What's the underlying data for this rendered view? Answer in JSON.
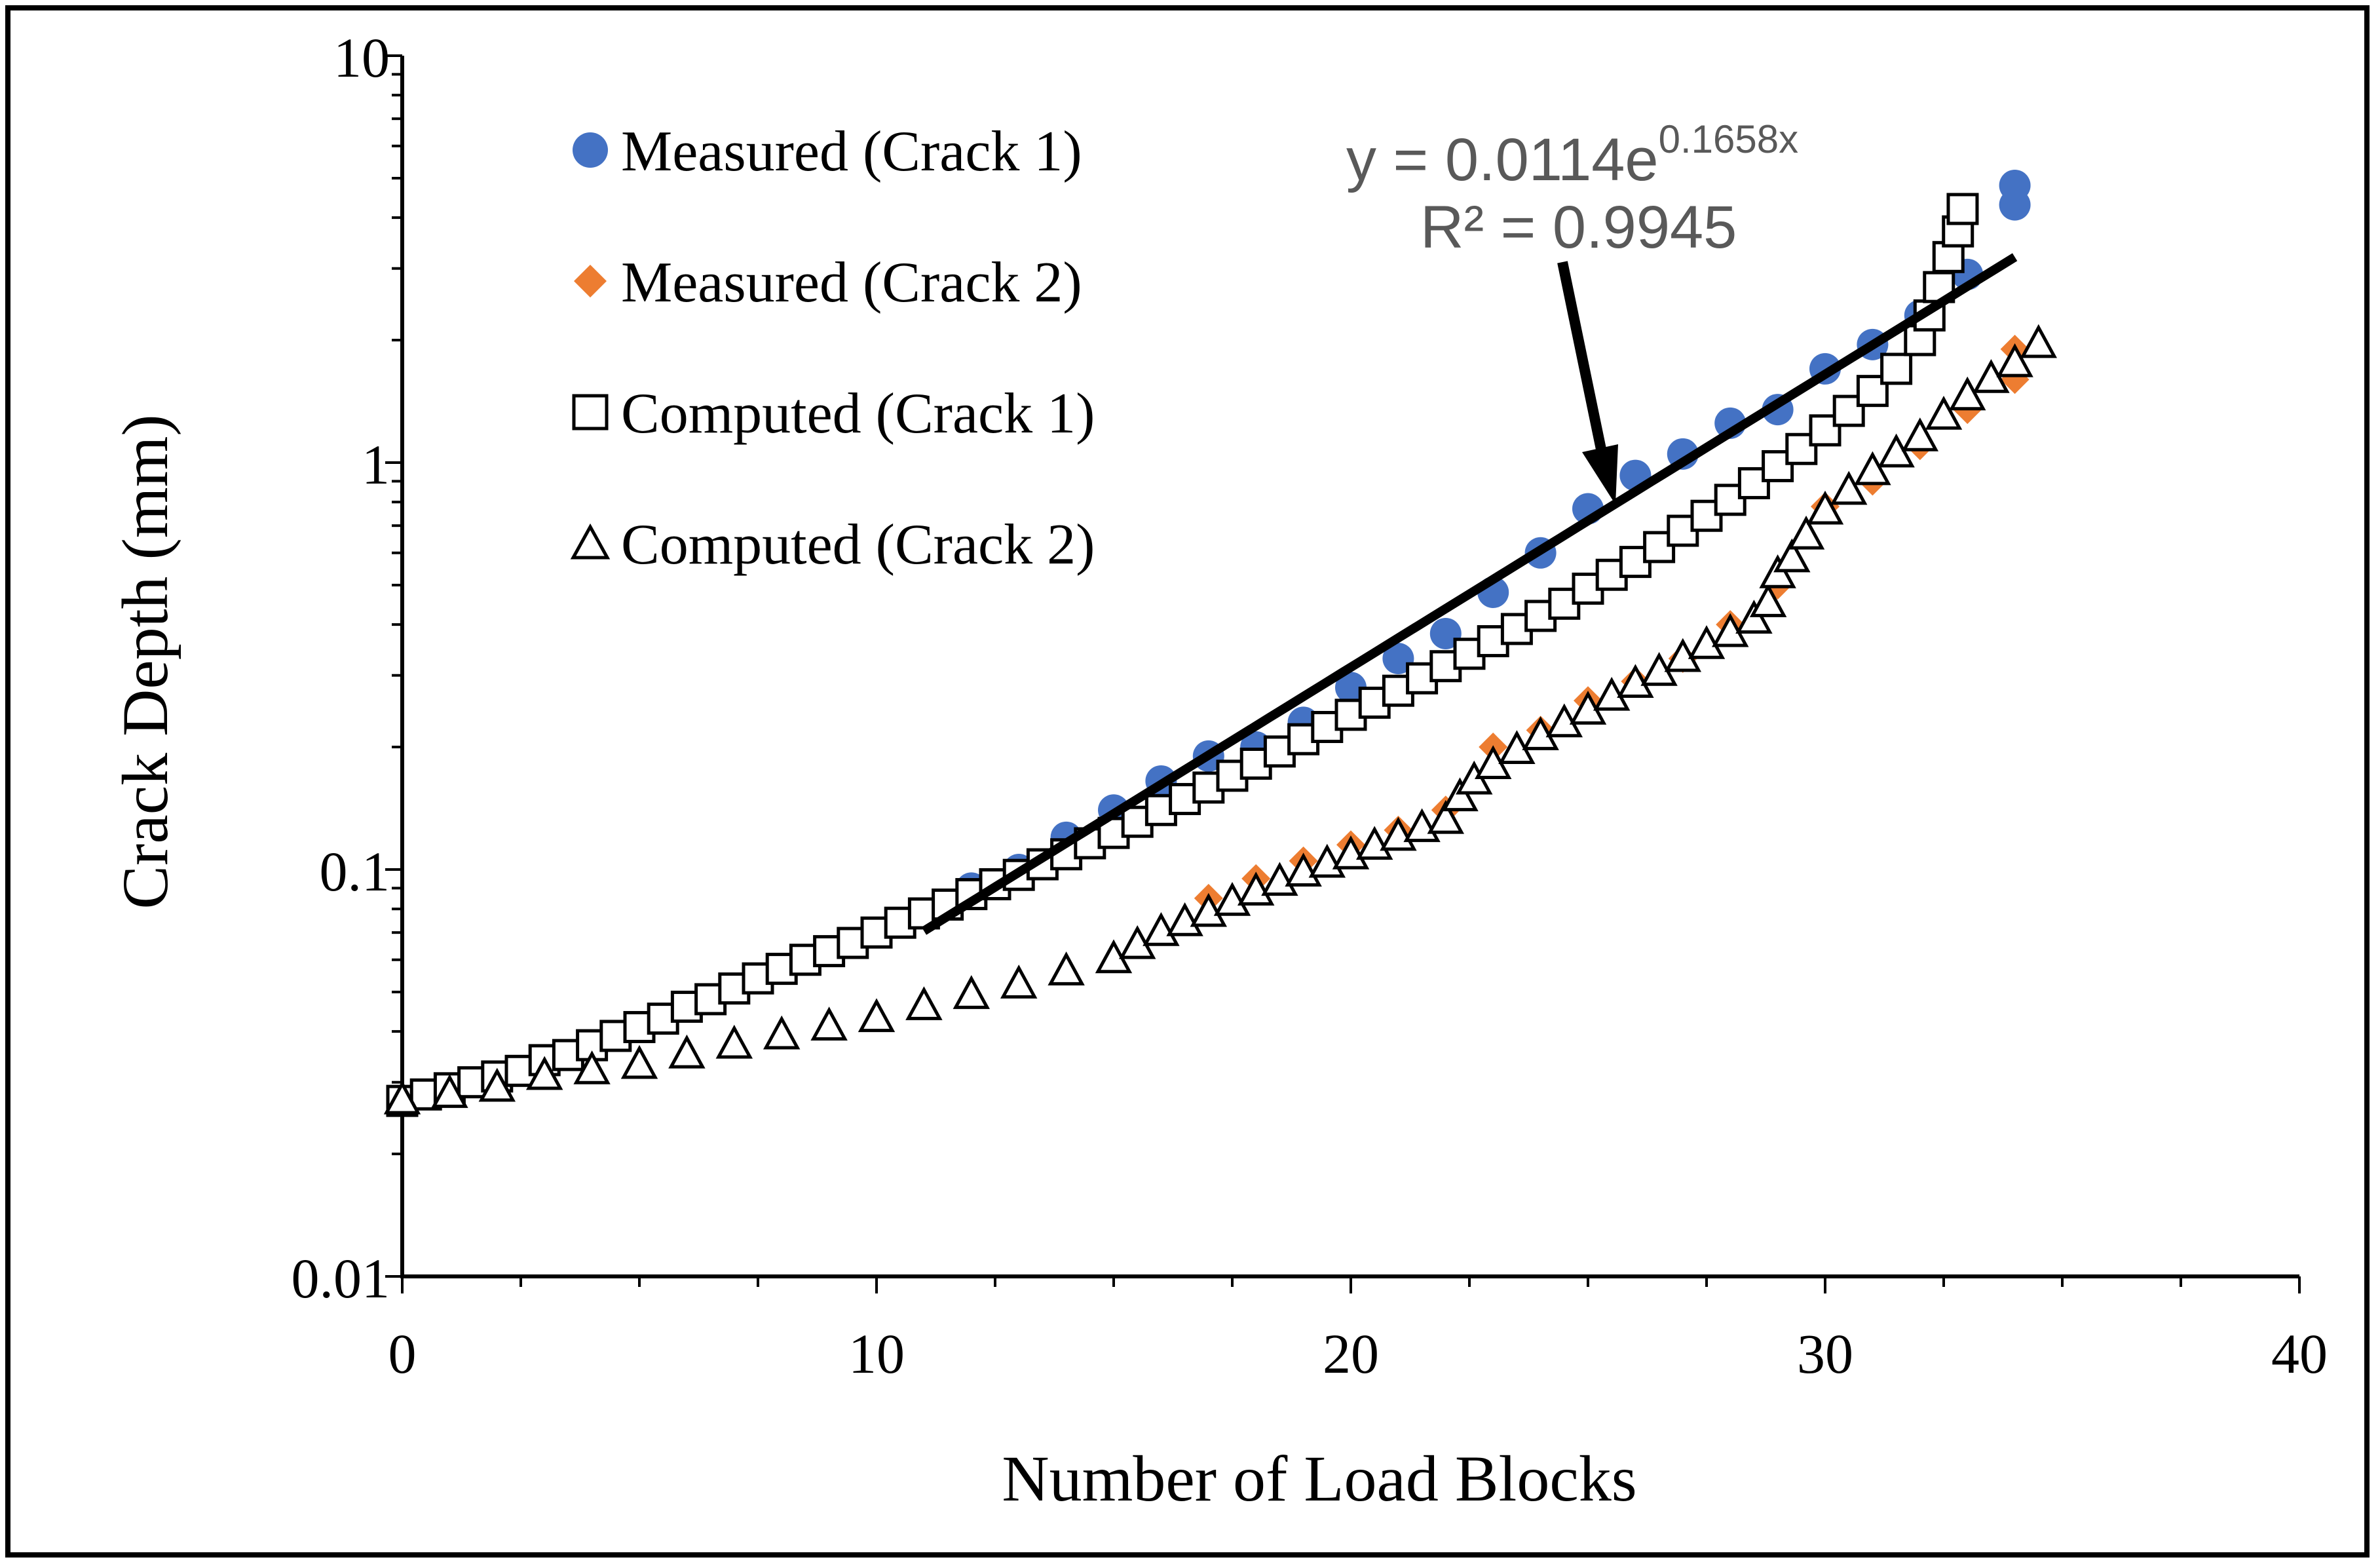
{
  "chart_data": {
    "type": "scatter",
    "title": "",
    "xlabel": "Number of Load Blocks",
    "ylabel": "Crack Depth (mm)",
    "xlim": [
      0,
      40
    ],
    "ylim": [
      0.01,
      10
    ],
    "yscale": "log",
    "grid": false,
    "legend_placement": "top-left",
    "x_ticks": [
      0,
      10,
      20,
      30,
      40
    ],
    "x_tick_labels": [
      "0",
      "10",
      "20",
      "30",
      "40"
    ],
    "y_ticks": [
      0.01,
      0.1,
      1,
      10
    ],
    "y_tick_labels": [
      "0.01",
      "0.1",
      "1",
      "10"
    ],
    "colors": {
      "measured_crack1": "#4472C4",
      "measured_crack2": "#ED7D31",
      "computed": "#000000",
      "trendline": "#000000",
      "annotation": "#595959"
    },
    "series": [
      {
        "name": "Measured (Crack 1)",
        "marker": "circle",
        "x": [
          11,
          12,
          13,
          14,
          15,
          16,
          17,
          18,
          19,
          20,
          21,
          22,
          23,
          24,
          25,
          26,
          27,
          28,
          29,
          30,
          31,
          32,
          33,
          34,
          34
        ],
        "y": [
          0.078,
          0.09,
          0.1,
          0.12,
          0.14,
          0.165,
          0.19,
          0.2,
          0.23,
          0.28,
          0.33,
          0.38,
          0.48,
          0.6,
          0.77,
          0.93,
          1.05,
          1.25,
          1.35,
          1.7,
          1.95,
          2.3,
          2.9,
          4.3,
          4.8
        ]
      },
      {
        "name": "Measured (Crack 2)",
        "marker": "diamond",
        "x": [
          17,
          18,
          19,
          20,
          21,
          22,
          23,
          24,
          25,
          26,
          27,
          28,
          29,
          30,
          31,
          32,
          33,
          34,
          34
        ],
        "y": [
          0.085,
          0.095,
          0.105,
          0.115,
          0.125,
          0.14,
          0.2,
          0.22,
          0.26,
          0.29,
          0.33,
          0.4,
          0.5,
          0.78,
          0.9,
          1.1,
          1.35,
          1.6,
          1.9
        ]
      },
      {
        "name": "Computed (Crack 1)",
        "marker": "square",
        "x": [
          0,
          0.5,
          1,
          1.5,
          2,
          2.5,
          3,
          3.5,
          4,
          4.5,
          5,
          5.5,
          6,
          6.5,
          7,
          7.5,
          8,
          8.5,
          9,
          9.5,
          10,
          10.5,
          11,
          11.5,
          12,
          12.5,
          13,
          13.5,
          14,
          14.5,
          15,
          15.5,
          16,
          16.5,
          17,
          17.5,
          18,
          18.5,
          19,
          19.5,
          20,
          20.5,
          21,
          21.5,
          22,
          22.5,
          23,
          23.5,
          24,
          24.5,
          25,
          25.5,
          26,
          26.5,
          27,
          27.5,
          28,
          28.5,
          29,
          29.5,
          30,
          30.5,
          31,
          31.5,
          32,
          32.2,
          32.4,
          32.6,
          32.8,
          32.9
        ],
        "y": [
          0.027,
          0.028,
          0.029,
          0.03,
          0.031,
          0.032,
          0.034,
          0.035,
          0.037,
          0.039,
          0.041,
          0.043,
          0.046,
          0.048,
          0.051,
          0.054,
          0.057,
          0.06,
          0.063,
          0.066,
          0.07,
          0.074,
          0.078,
          0.082,
          0.087,
          0.092,
          0.097,
          0.103,
          0.109,
          0.116,
          0.123,
          0.131,
          0.14,
          0.149,
          0.159,
          0.17,
          0.182,
          0.195,
          0.209,
          0.224,
          0.24,
          0.257,
          0.275,
          0.295,
          0.316,
          0.339,
          0.364,
          0.39,
          0.42,
          0.45,
          0.49,
          0.53,
          0.57,
          0.62,
          0.68,
          0.74,
          0.81,
          0.89,
          0.98,
          1.08,
          1.2,
          1.34,
          1.5,
          1.7,
          2.0,
          2.3,
          2.7,
          3.2,
          3.7,
          4.2
        ]
      },
      {
        "name": "Computed (Crack 2)",
        "marker": "triangle",
        "x": [
          0,
          1,
          2,
          3,
          4,
          5,
          6,
          7,
          8,
          9,
          10,
          11,
          12,
          13,
          14,
          15,
          15.5,
          16,
          16.5,
          17,
          17.5,
          18,
          18.5,
          19,
          19.5,
          20,
          20.5,
          21,
          21.5,
          22,
          22.3,
          22.6,
          23,
          23.5,
          24,
          24.5,
          25,
          25.5,
          26,
          26.5,
          27,
          27.5,
          28,
          28.5,
          28.8,
          29,
          29.3,
          29.6,
          30,
          30.5,
          31,
          31.5,
          32,
          32.5,
          33,
          33.5,
          34,
          34.5
        ],
        "y": [
          0.027,
          0.028,
          0.029,
          0.031,
          0.032,
          0.033,
          0.035,
          0.037,
          0.039,
          0.041,
          0.043,
          0.046,
          0.049,
          0.052,
          0.056,
          0.06,
          0.065,
          0.07,
          0.074,
          0.078,
          0.083,
          0.088,
          0.093,
          0.098,
          0.103,
          0.108,
          0.114,
          0.12,
          0.126,
          0.132,
          0.15,
          0.165,
          0.18,
          0.196,
          0.212,
          0.228,
          0.245,
          0.265,
          0.285,
          0.305,
          0.33,
          0.355,
          0.38,
          0.41,
          0.45,
          0.53,
          0.58,
          0.66,
          0.76,
          0.85,
          0.95,
          1.05,
          1.15,
          1.3,
          1.45,
          1.6,
          1.75,
          1.95
        ]
      }
    ],
    "trendline": {
      "type": "exponential",
      "a": 0.0114,
      "b": 0.1658,
      "x_range": [
        11,
        34
      ],
      "equation_prefix": "y = 0.0114e",
      "equation_exponent": "0.1658x",
      "r_squared_label": "R² = 0.9945"
    }
  }
}
